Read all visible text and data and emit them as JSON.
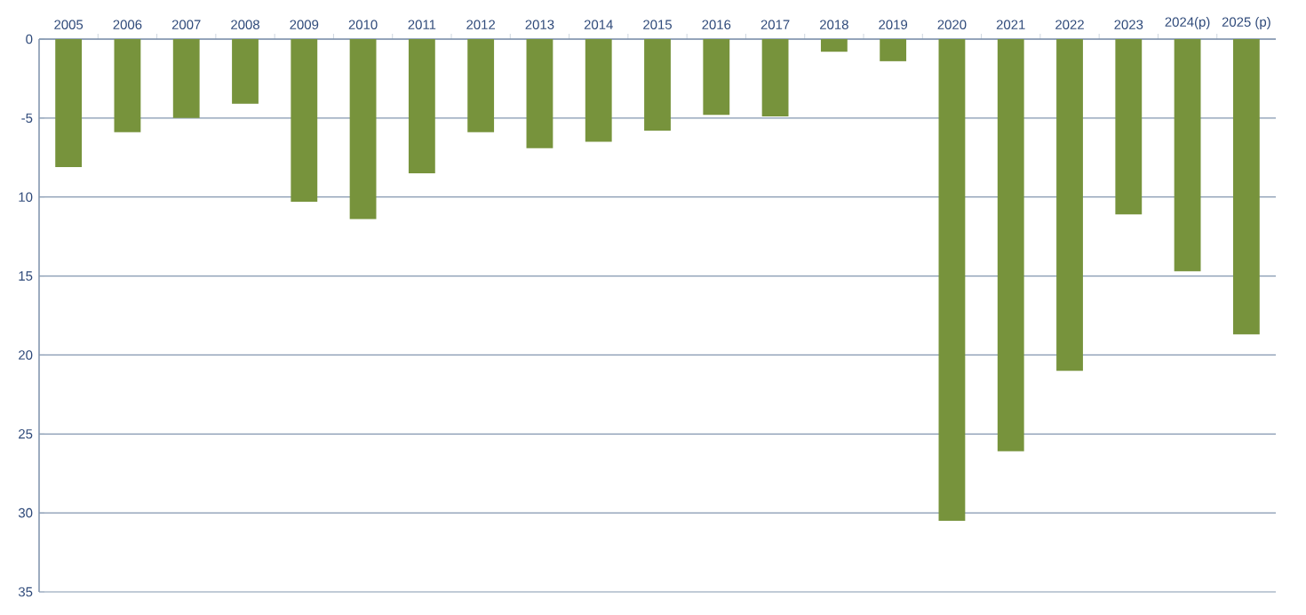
{
  "chart_data": {
    "type": "bar",
    "categories": [
      "2005",
      "2006",
      "2007",
      "2008",
      "2009",
      "2010",
      "2011",
      "2012",
      "2013",
      "2014",
      "2015",
      "2016",
      "2017",
      "2018",
      "2019",
      "2020",
      "2021",
      "2022",
      "2023",
      "2024(p)",
      "2025 (p)"
    ],
    "values": [
      -8.1,
      -5.9,
      -5.0,
      -4.1,
      -10.3,
      -11.4,
      -8.5,
      -5.9,
      -6.9,
      -6.5,
      -5.8,
      -4.8,
      -4.9,
      -0.8,
      -1.4,
      -30.5,
      -26.1,
      -21.0,
      -11.1,
      -14.7,
      -18.7
    ],
    "color": "#77933c",
    "ylim": [
      -35,
      0
    ],
    "yticks": [
      {
        "value": -35,
        "label": "35"
      },
      {
        "value": -30,
        "label": "30"
      },
      {
        "value": -25,
        "label": "25"
      },
      {
        "value": -20,
        "label": "20"
      },
      {
        "value": -15,
        "label": "15"
      },
      {
        "value": -10,
        "label": "10"
      },
      -5,
      0
    ],
    "grid": "y"
  }
}
